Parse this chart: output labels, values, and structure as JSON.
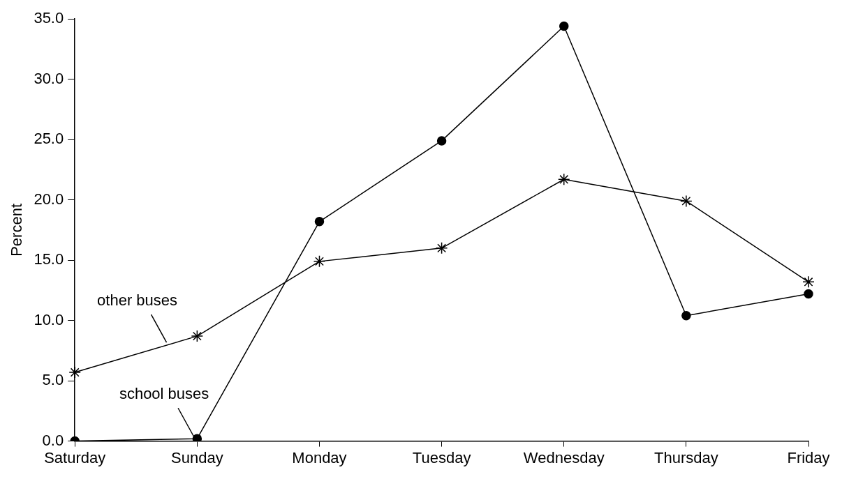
{
  "chart_data": {
    "type": "line",
    "ylabel": "Percent",
    "categories": [
      "Saturday",
      "Sunday",
      "Monday",
      "Tuesday",
      "Wednesday",
      "Thursday",
      "Friday"
    ],
    "series": [
      {
        "name": "school buses",
        "color": "#000000",
        "marker": "circle",
        "values": [
          0.0,
          0.2,
          18.2,
          24.9,
          34.4,
          10.4,
          12.2
        ]
      },
      {
        "name": "other buses",
        "color": "#000000",
        "marker": "cross",
        "values": [
          5.7,
          8.7,
          14.9,
          16.0,
          21.7,
          19.9,
          13.2
        ]
      }
    ],
    "ylim": [
      0,
      35
    ],
    "yticks": [
      {
        "value": 0,
        "label": "0.0"
      },
      {
        "value": 5,
        "label": "5.0"
      },
      {
        "value": 10,
        "label": "10.0"
      },
      {
        "value": 15,
        "label": "15.0"
      },
      {
        "value": 20,
        "label": "20.0"
      },
      {
        "value": 25,
        "label": "25.0"
      },
      {
        "value": 30,
        "label": "30.0"
      },
      {
        "value": 35,
        "label": "35.0"
      }
    ],
    "grid": false,
    "legend": false,
    "line_style": "solid"
  }
}
